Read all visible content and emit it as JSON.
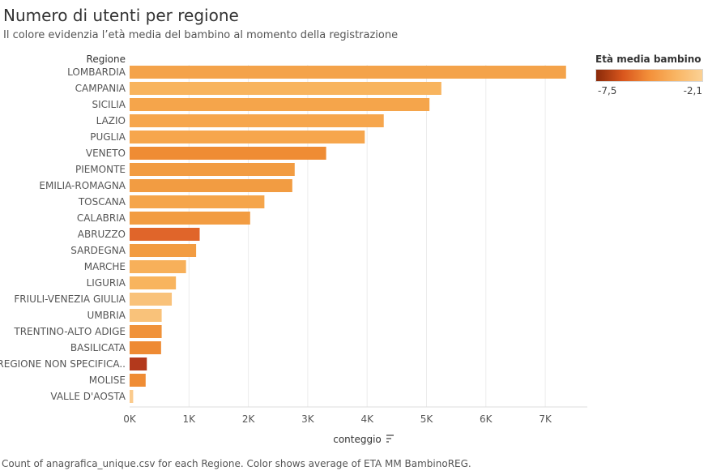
{
  "header": {
    "title": "Numero di utenti per regione",
    "subtitle": "Il colore evidenzia l’età media del bambino al momento della registrazione"
  },
  "legend": {
    "title": "Età media bambino",
    "min_label": "-7,5",
    "max_label": "-2,1",
    "gradient_colors": [
      "#8a2a0a",
      "#d9561d",
      "#f3903a",
      "#f9b563",
      "#fbd195"
    ]
  },
  "footer": {
    "text": "Count of anagrafica_unique.csv for each Regione.  Color shows average of ETA MM BambinoREG."
  },
  "chart_data": {
    "type": "bar",
    "orientation": "horizontal",
    "ylabel": "Regione",
    "xlabel": "conteggio",
    "xlim": [
      0,
      7600
    ],
    "x_ticks": [
      0,
      1000,
      2000,
      3000,
      4000,
      5000,
      6000,
      7000
    ],
    "x_tick_labels": [
      "0K",
      "1K",
      "2K",
      "3K",
      "4K",
      "5K",
      "6K",
      "7K"
    ],
    "grid": true,
    "legend_position": "top-right",
    "categories": [
      "LOMBARDIA",
      "CAMPANIA",
      "SICILIA",
      "LAZIO",
      "PUGLIA",
      "VENETO",
      "PIEMONTE",
      "EMILIA-ROMAGNA",
      "TOSCANA",
      "CALABRIA",
      "ABRUZZO",
      "SARDEGNA",
      "MARCHE",
      "LIGURIA",
      "FRIULI-VENEZIA GIULIA",
      "UMBRIA",
      "TRENTINO-ALTO ADIGE",
      "BASILICATA",
      "REGIONE NON SPECIFICA..",
      "MOLISE",
      "VALLE D'AOSTA"
    ],
    "values": [
      7350,
      5250,
      5050,
      4280,
      3960,
      3310,
      2780,
      2740,
      2270,
      2030,
      1180,
      1120,
      950,
      780,
      710,
      540,
      540,
      530,
      290,
      270,
      60
    ],
    "colors": [
      "#f4a34a",
      "#f8b45e",
      "#f5a54b",
      "#f6a64d",
      "#f6a64d",
      "#ef8c34",
      "#f29c42",
      "#f29c42",
      "#f5a54b",
      "#f29c42",
      "#e0652a",
      "#f29c42",
      "#f7b05a",
      "#f8b45e",
      "#f9c27a",
      "#f9c27a",
      "#f0923a",
      "#ee8a33",
      "#b3391c",
      "#ef8c34",
      "#fbcb8d"
    ]
  }
}
